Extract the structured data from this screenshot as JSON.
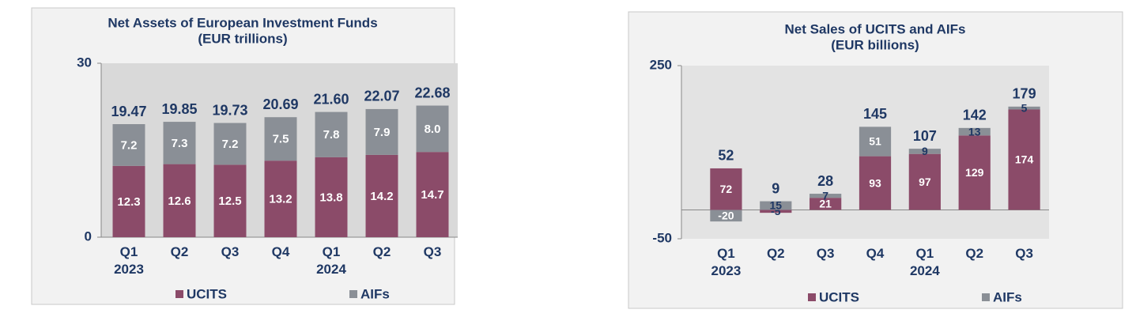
{
  "chart_data": [
    {
      "type": "stacked_bar",
      "title": "Net Assets of European Investment Funds",
      "subtitle": "(EUR trillions)",
      "categories": [
        "Q1 2023",
        "Q2",
        "Q3",
        "Q4",
        "Q1 2024",
        "Q2",
        "Q3"
      ],
      "series": [
        {
          "name": "UCITS",
          "color": "#8b4b69",
          "values": [
            12.3,
            12.6,
            12.5,
            13.2,
            13.8,
            14.2,
            14.7
          ]
        },
        {
          "name": "AIFs",
          "color": "#8a8f96",
          "values": [
            7.2,
            7.3,
            7.2,
            7.5,
            7.8,
            7.9,
            8.0
          ],
          "value_labels": [
            "7.2",
            "7.3",
            "7.2",
            "7.5",
            "7.8",
            "7.9",
            "8.0"
          ]
        }
      ],
      "totals": [
        "19.47",
        "19.85",
        "19.73",
        "20.69",
        "21.60",
        "22.07",
        "22.68"
      ],
      "ylim": [
        0,
        30
      ],
      "yticks": [
        0,
        30
      ],
      "legend": "bottom"
    },
    {
      "type": "stacked_bar",
      "title": "Net Sales of UCITS and AIFs",
      "subtitle": "(EUR billions)",
      "categories": [
        "Q1 2023",
        "Q2",
        "Q3",
        "Q4",
        "Q1 2024",
        "Q2",
        "Q3"
      ],
      "series": [
        {
          "name": "UCITS",
          "color": "#8b4b69",
          "values": [
            72,
            -5,
            21,
            93,
            97,
            129,
            174
          ]
        },
        {
          "name": "AIFs",
          "color": "#8a8f96",
          "values": [
            -20,
            15,
            7,
            51,
            9,
            13,
            5
          ]
        }
      ],
      "totals": [
        52,
        9,
        28,
        145,
        107,
        142,
        179
      ],
      "ylim": [
        -50,
        250
      ],
      "yticks": [
        -50,
        250
      ],
      "legend": "bottom"
    }
  ]
}
